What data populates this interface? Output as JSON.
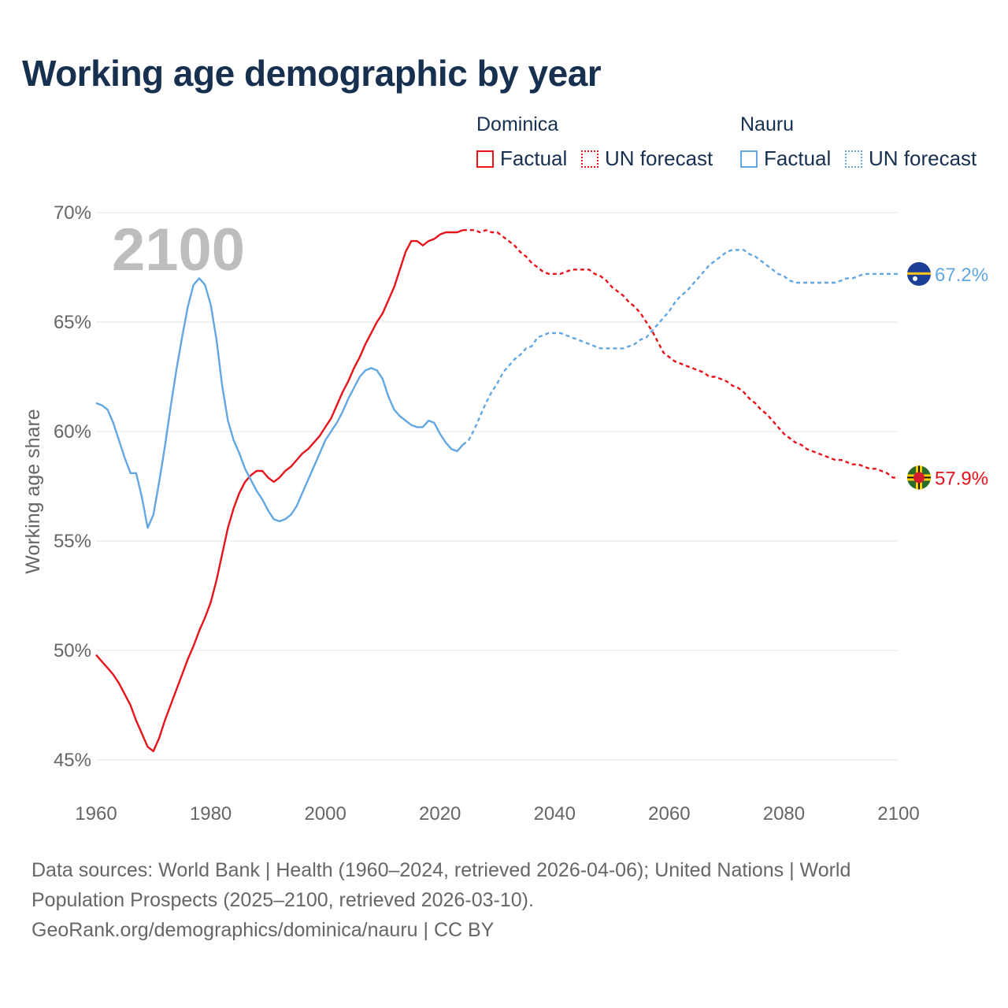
{
  "title": "Working age demographic by year",
  "legend": {
    "groups": [
      {
        "country": "Dominica",
        "items": [
          {
            "label": "Factual",
            "color": "#e8121b",
            "style": "solid"
          },
          {
            "label": "UN forecast",
            "color": "#e8121b",
            "style": "dotted"
          }
        ]
      },
      {
        "country": "Nauru",
        "items": [
          {
            "label": "Factual",
            "color": "#62a6e2",
            "style": "solid"
          },
          {
            "label": "UN forecast",
            "color": "#62a6e2",
            "style": "dotted"
          }
        ]
      }
    ]
  },
  "footer": {
    "line1": "Data sources: World Bank | Health (1960–2024, retrieved 2026-04-06); United Nations | World",
    "line2": "Population Prospects (2025–2100, retrieved 2026-03-10).",
    "line3": "GeoRank.org/demographics/dominica/nauru | CC BY"
  },
  "chart_data": {
    "type": "line",
    "title": "Working age demographic by year",
    "xlabel": "",
    "ylabel": "Working age share",
    "xlim": [
      1960,
      2100
    ],
    "ylim": [
      45,
      70
    ],
    "x_ticks": [
      1960,
      1980,
      2000,
      2020,
      2040,
      2060,
      2080,
      2100
    ],
    "y_ticks": [
      {
        "value": 45,
        "label": "45%"
      },
      {
        "value": 50,
        "label": "50%"
      },
      {
        "value": 55,
        "label": "55%"
      },
      {
        "value": 60,
        "label": "60%"
      },
      {
        "value": 65,
        "label": "65%"
      },
      {
        "value": 70,
        "label": "70%"
      }
    ],
    "year_watermark": "2100",
    "grid": true,
    "forecast_start": 2025,
    "series": [
      {
        "name": "Dominica",
        "color": "#e8121b",
        "end_label": "57.9%",
        "points": [
          [
            1960,
            49.8
          ],
          [
            1961,
            49.5
          ],
          [
            1962,
            49.2
          ],
          [
            1963,
            48.9
          ],
          [
            1964,
            48.5
          ],
          [
            1965,
            48.0
          ],
          [
            1966,
            47.5
          ],
          [
            1967,
            46.8
          ],
          [
            1968,
            46.2
          ],
          [
            1969,
            45.6
          ],
          [
            1970,
            45.4
          ],
          [
            1971,
            46.0
          ],
          [
            1972,
            46.8
          ],
          [
            1973,
            47.5
          ],
          [
            1974,
            48.2
          ],
          [
            1975,
            48.9
          ],
          [
            1976,
            49.6
          ],
          [
            1977,
            50.2
          ],
          [
            1978,
            50.9
          ],
          [
            1979,
            51.5
          ],
          [
            1980,
            52.2
          ],
          [
            1981,
            53.2
          ],
          [
            1982,
            54.4
          ],
          [
            1983,
            55.6
          ],
          [
            1984,
            56.5
          ],
          [
            1985,
            57.2
          ],
          [
            1986,
            57.7
          ],
          [
            1987,
            58.0
          ],
          [
            1988,
            58.2
          ],
          [
            1989,
            58.2
          ],
          [
            1990,
            57.9
          ],
          [
            1991,
            57.7
          ],
          [
            1992,
            57.9
          ],
          [
            1993,
            58.2
          ],
          [
            1994,
            58.4
          ],
          [
            1995,
            58.7
          ],
          [
            1996,
            59.0
          ],
          [
            1997,
            59.2
          ],
          [
            1998,
            59.5
          ],
          [
            1999,
            59.8
          ],
          [
            2000,
            60.2
          ],
          [
            2001,
            60.6
          ],
          [
            2002,
            61.2
          ],
          [
            2003,
            61.8
          ],
          [
            2004,
            62.3
          ],
          [
            2005,
            62.9
          ],
          [
            2006,
            63.4
          ],
          [
            2007,
            64.0
          ],
          [
            2008,
            64.5
          ],
          [
            2009,
            65.0
          ],
          [
            2010,
            65.4
          ],
          [
            2011,
            66.0
          ],
          [
            2012,
            66.6
          ],
          [
            2013,
            67.4
          ],
          [
            2014,
            68.2
          ],
          [
            2015,
            68.7
          ],
          [
            2016,
            68.7
          ],
          [
            2017,
            68.5
          ],
          [
            2018,
            68.7
          ],
          [
            2019,
            68.8
          ],
          [
            2020,
            69.0
          ],
          [
            2021,
            69.1
          ],
          [
            2022,
            69.1
          ],
          [
            2023,
            69.1
          ],
          [
            2024,
            69.2
          ],
          [
            2025,
            69.2
          ],
          [
            2026,
            69.2
          ],
          [
            2027,
            69.1
          ],
          [
            2028,
            69.2
          ],
          [
            2029,
            69.1
          ],
          [
            2030,
            69.1
          ],
          [
            2031,
            68.9
          ],
          [
            2032,
            68.7
          ],
          [
            2033,
            68.5
          ],
          [
            2034,
            68.2
          ],
          [
            2035,
            68.0
          ],
          [
            2036,
            67.7
          ],
          [
            2037,
            67.5
          ],
          [
            2038,
            67.3
          ],
          [
            2039,
            67.2
          ],
          [
            2040,
            67.2
          ],
          [
            2041,
            67.2
          ],
          [
            2042,
            67.3
          ],
          [
            2043,
            67.4
          ],
          [
            2044,
            67.4
          ],
          [
            2045,
            67.4
          ],
          [
            2046,
            67.4
          ],
          [
            2047,
            67.2
          ],
          [
            2048,
            67.1
          ],
          [
            2049,
            66.9
          ],
          [
            2050,
            66.6
          ],
          [
            2051,
            66.4
          ],
          [
            2052,
            66.2
          ],
          [
            2053,
            65.9
          ],
          [
            2054,
            65.7
          ],
          [
            2055,
            65.4
          ],
          [
            2056,
            65.0
          ],
          [
            2057,
            64.6
          ],
          [
            2058,
            64.1
          ],
          [
            2059,
            63.6
          ],
          [
            2060,
            63.4
          ],
          [
            2061,
            63.2
          ],
          [
            2062,
            63.1
          ],
          [
            2063,
            63.0
          ],
          [
            2064,
            62.9
          ],
          [
            2065,
            62.8
          ],
          [
            2066,
            62.7
          ],
          [
            2067,
            62.5
          ],
          [
            2068,
            62.5
          ],
          [
            2069,
            62.4
          ],
          [
            2070,
            62.3
          ],
          [
            2071,
            62.1
          ],
          [
            2072,
            62.0
          ],
          [
            2073,
            61.8
          ],
          [
            2074,
            61.5
          ],
          [
            2075,
            61.3
          ],
          [
            2076,
            61.0
          ],
          [
            2077,
            60.8
          ],
          [
            2078,
            60.5
          ],
          [
            2079,
            60.2
          ],
          [
            2080,
            59.9
          ],
          [
            2081,
            59.7
          ],
          [
            2082,
            59.5
          ],
          [
            2083,
            59.4
          ],
          [
            2084,
            59.2
          ],
          [
            2085,
            59.1
          ],
          [
            2086,
            59.0
          ],
          [
            2087,
            58.9
          ],
          [
            2088,
            58.8
          ],
          [
            2089,
            58.7
          ],
          [
            2090,
            58.7
          ],
          [
            2091,
            58.6
          ],
          [
            2092,
            58.5
          ],
          [
            2093,
            58.5
          ],
          [
            2094,
            58.4
          ],
          [
            2095,
            58.3
          ],
          [
            2096,
            58.3
          ],
          [
            2097,
            58.2
          ],
          [
            2098,
            58.1
          ],
          [
            2099,
            57.9
          ],
          [
            2100,
            57.9
          ]
        ]
      },
      {
        "name": "Nauru",
        "color": "#62a6e2",
        "end_label": "67.2%",
        "points": [
          [
            1960,
            61.3
          ],
          [
            1961,
            61.2
          ],
          [
            1962,
            61.0
          ],
          [
            1963,
            60.4
          ],
          [
            1964,
            59.6
          ],
          [
            1965,
            58.8
          ],
          [
            1966,
            58.1
          ],
          [
            1967,
            58.1
          ],
          [
            1968,
            57.0
          ],
          [
            1969,
            55.6
          ],
          [
            1970,
            56.2
          ],
          [
            1971,
            57.7
          ],
          [
            1972,
            59.3
          ],
          [
            1973,
            61.1
          ],
          [
            1974,
            62.8
          ],
          [
            1975,
            64.3
          ],
          [
            1976,
            65.7
          ],
          [
            1977,
            66.7
          ],
          [
            1978,
            67.0
          ],
          [
            1979,
            66.7
          ],
          [
            1980,
            65.8
          ],
          [
            1981,
            64.2
          ],
          [
            1982,
            62.1
          ],
          [
            1983,
            60.5
          ],
          [
            1984,
            59.6
          ],
          [
            1985,
            59.0
          ],
          [
            1986,
            58.3
          ],
          [
            1987,
            57.8
          ],
          [
            1988,
            57.3
          ],
          [
            1989,
            56.9
          ],
          [
            1990,
            56.4
          ],
          [
            1991,
            56.0
          ],
          [
            1992,
            55.9
          ],
          [
            1993,
            56.0
          ],
          [
            1994,
            56.2
          ],
          [
            1995,
            56.6
          ],
          [
            1996,
            57.2
          ],
          [
            1997,
            57.8
          ],
          [
            1998,
            58.4
          ],
          [
            1999,
            59.0
          ],
          [
            2000,
            59.6
          ],
          [
            2001,
            60.0
          ],
          [
            2002,
            60.4
          ],
          [
            2003,
            60.9
          ],
          [
            2004,
            61.5
          ],
          [
            2005,
            62.0
          ],
          [
            2006,
            62.5
          ],
          [
            2007,
            62.8
          ],
          [
            2008,
            62.9
          ],
          [
            2009,
            62.8
          ],
          [
            2010,
            62.4
          ],
          [
            2011,
            61.6
          ],
          [
            2012,
            61.0
          ],
          [
            2013,
            60.7
          ],
          [
            2014,
            60.5
          ],
          [
            2015,
            60.3
          ],
          [
            2016,
            60.2
          ],
          [
            2017,
            60.2
          ],
          [
            2018,
            60.5
          ],
          [
            2019,
            60.4
          ],
          [
            2020,
            59.9
          ],
          [
            2021,
            59.5
          ],
          [
            2022,
            59.2
          ],
          [
            2023,
            59.1
          ],
          [
            2024,
            59.4
          ],
          [
            2025,
            59.6
          ],
          [
            2026,
            60.1
          ],
          [
            2027,
            60.7
          ],
          [
            2028,
            61.3
          ],
          [
            2029,
            61.8
          ],
          [
            2030,
            62.2
          ],
          [
            2031,
            62.7
          ],
          [
            2032,
            63.0
          ],
          [
            2033,
            63.3
          ],
          [
            2034,
            63.5
          ],
          [
            2035,
            63.8
          ],
          [
            2036,
            63.9
          ],
          [
            2037,
            64.3
          ],
          [
            2038,
            64.4
          ],
          [
            2039,
            64.5
          ],
          [
            2040,
            64.5
          ],
          [
            2041,
            64.5
          ],
          [
            2042,
            64.4
          ],
          [
            2043,
            64.3
          ],
          [
            2044,
            64.2
          ],
          [
            2045,
            64.1
          ],
          [
            2046,
            64.0
          ],
          [
            2047,
            63.9
          ],
          [
            2048,
            63.8
          ],
          [
            2049,
            63.8
          ],
          [
            2050,
            63.8
          ],
          [
            2051,
            63.8
          ],
          [
            2052,
            63.8
          ],
          [
            2053,
            63.9
          ],
          [
            2054,
            64.0
          ],
          [
            2055,
            64.2
          ],
          [
            2056,
            64.3
          ],
          [
            2057,
            64.6
          ],
          [
            2058,
            64.9
          ],
          [
            2059,
            65.2
          ],
          [
            2060,
            65.5
          ],
          [
            2061,
            65.9
          ],
          [
            2062,
            66.2
          ],
          [
            2063,
            66.4
          ],
          [
            2064,
            66.7
          ],
          [
            2065,
            67.0
          ],
          [
            2066,
            67.3
          ],
          [
            2067,
            67.6
          ],
          [
            2068,
            67.8
          ],
          [
            2069,
            68.0
          ],
          [
            2070,
            68.2
          ],
          [
            2071,
            68.3
          ],
          [
            2072,
            68.3
          ],
          [
            2073,
            68.3
          ],
          [
            2074,
            68.1
          ],
          [
            2075,
            68.0
          ],
          [
            2076,
            67.8
          ],
          [
            2077,
            67.6
          ],
          [
            2078,
            67.4
          ],
          [
            2079,
            67.2
          ],
          [
            2080,
            67.1
          ],
          [
            2081,
            66.9
          ],
          [
            2082,
            66.8
          ],
          [
            2083,
            66.8
          ],
          [
            2084,
            66.8
          ],
          [
            2085,
            66.8
          ],
          [
            2086,
            66.8
          ],
          [
            2087,
            66.8
          ],
          [
            2088,
            66.8
          ],
          [
            2089,
            66.8
          ],
          [
            2090,
            66.9
          ],
          [
            2091,
            67.0
          ],
          [
            2092,
            67.0
          ],
          [
            2093,
            67.1
          ],
          [
            2094,
            67.2
          ],
          [
            2095,
            67.2
          ],
          [
            2096,
            67.2
          ],
          [
            2097,
            67.2
          ],
          [
            2098,
            67.2
          ],
          [
            2099,
            67.2
          ],
          [
            2100,
            67.2
          ]
        ]
      }
    ]
  }
}
